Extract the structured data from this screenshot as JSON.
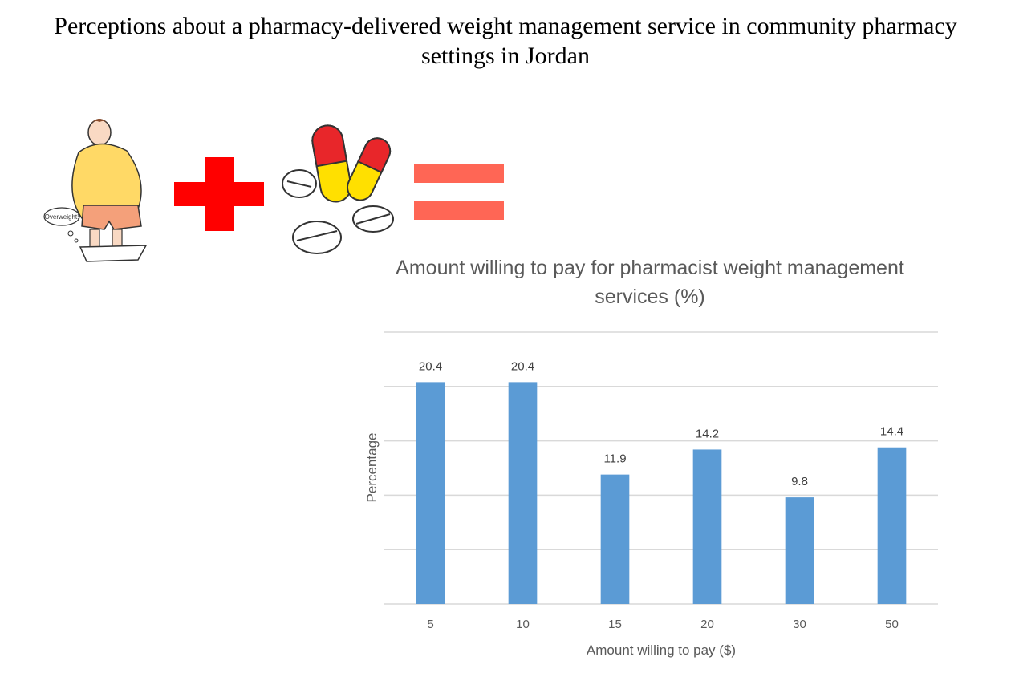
{
  "page": {
    "title": "Perceptions about a pharmacy-delivered weight management service in community pharmacy settings in Jordan"
  },
  "illustration": {
    "speech_bubble_text": "Overweight!",
    "icons": [
      "overweight-person-icon",
      "red-cross-icon",
      "pills-icon",
      "equals-icon"
    ],
    "colors": {
      "cross": "#ff0000",
      "equals": "#ff6655",
      "capsule_red": "#e8262a",
      "capsule_yellow": "#ffe000",
      "shirt": "#ffd966",
      "shorts": "#f4a07a"
    }
  },
  "chart_data": {
    "type": "bar",
    "title": "Amount willing to pay for pharmacist weight management services (%)",
    "xlabel": "Amount willing to pay ($)",
    "ylabel": "Percentage",
    "categories": [
      "5",
      "10",
      "15",
      "20",
      "30",
      "50"
    ],
    "values": [
      20.4,
      20.4,
      11.9,
      14.2,
      9.8,
      14.4
    ],
    "data_labels": [
      "20.4",
      "20.4",
      "11.9",
      "14.2",
      "9.8",
      "14.4"
    ],
    "ylim": [
      0,
      25
    ],
    "grid": true,
    "bar_color": "#5b9bd5"
  }
}
